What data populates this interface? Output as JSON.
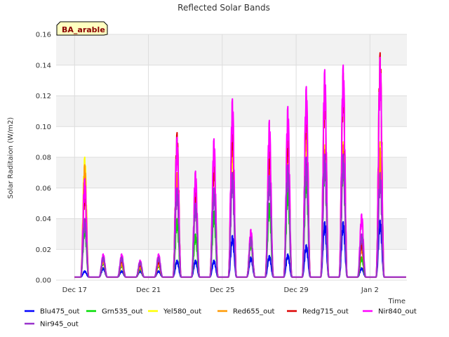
{
  "chart_data": {
    "type": "line",
    "title": "Reflected Solar Bands",
    "ylabel": "Solar Raditaion (W/m2)",
    "xlabel": "Time",
    "site_label": "BA_arable",
    "xlim": [
      "2024-12-16",
      "2025-01-04"
    ],
    "ylim": [
      0,
      0.16
    ],
    "yticks": [
      0.0,
      0.02,
      0.04,
      0.06,
      0.08,
      0.1,
      0.12,
      0.14,
      0.16
    ],
    "ytick_labels": [
      "0.00",
      "0.02",
      "0.04",
      "0.06",
      "0.08",
      "0.10",
      "0.12",
      "0.14",
      "0.16"
    ],
    "xticks": [
      "2024-12-17",
      "2024-12-21",
      "2024-12-25",
      "2024-12-29",
      "2025-01-02"
    ],
    "xtick_labels": [
      "Dec 17",
      "Dec 21",
      "Dec 25",
      "Dec 29",
      "Jan 2"
    ],
    "grid": true,
    "legend_position": "bottom",
    "days": [
      "2024-12-17",
      "2024-12-18",
      "2024-12-19",
      "2024-12-20",
      "2024-12-21",
      "2024-12-22",
      "2024-12-23",
      "2024-12-24",
      "2024-12-25",
      "2024-12-26",
      "2024-12-27",
      "2024-12-28",
      "2024-12-29",
      "2024-12-30",
      "2024-12-31",
      "2025-01-01",
      "2025-01-02",
      "2025-01-03"
    ],
    "series": [
      {
        "name": "Blu475_out",
        "color": "#0000ff",
        "daily_peak": [
          0.006,
          0.008,
          0.006,
          0.006,
          0.006,
          0.013,
          0.013,
          0.013,
          0.029,
          0.015,
          0.016,
          0.017,
          0.023,
          0.038,
          0.038,
          0.008,
          0.039,
          0.002
        ]
      },
      {
        "name": "Grn535_out",
        "color": "#00dd00",
        "daily_peak": [
          0.035,
          0.012,
          0.01,
          0.008,
          0.01,
          0.04,
          0.03,
          0.045,
          0.07,
          0.025,
          0.05,
          0.06,
          0.07,
          0.08,
          0.08,
          0.015,
          0.07,
          0.002
        ]
      },
      {
        "name": "Yel580_out",
        "color": "#ffff00",
        "daily_peak": [
          0.08,
          0.014,
          0.012,
          0.01,
          0.012,
          0.06,
          0.05,
          0.085,
          0.09,
          0.03,
          0.08,
          0.09,
          0.1,
          0.088,
          0.09,
          0.025,
          0.09,
          0.002
        ]
      },
      {
        "name": "Red655_out",
        "color": "#ff9900",
        "daily_peak": [
          0.075,
          0.013,
          0.011,
          0.009,
          0.011,
          0.07,
          0.055,
          0.08,
          0.1,
          0.028,
          0.085,
          0.095,
          0.11,
          0.085,
          0.088,
          0.022,
          0.086,
          0.002
        ]
      },
      {
        "name": "Redg715_out",
        "color": "#dd0000",
        "daily_peak": [
          0.06,
          0.015,
          0.014,
          0.011,
          0.013,
          0.096,
          0.06,
          0.08,
          0.105,
          0.03,
          0.09,
          0.1,
          0.12,
          0.13,
          0.135,
          0.025,
          0.148,
          0.002
        ]
      },
      {
        "name": "Nir840_out",
        "color": "#ff00ff",
        "daily_peak": [
          0.066,
          0.017,
          0.017,
          0.013,
          0.017,
          0.093,
          0.071,
          0.092,
          0.118,
          0.033,
          0.104,
          0.113,
          0.126,
          0.137,
          0.14,
          0.043,
          0.145,
          0.002
        ]
      },
      {
        "name": "Nir945_out",
        "color": "#9933cc",
        "daily_peak": [
          0.04,
          0.015,
          0.015,
          0.012,
          0.015,
          0.06,
          0.05,
          0.06,
          0.07,
          0.028,
          0.068,
          0.075,
          0.08,
          0.082,
          0.082,
          0.03,
          0.07,
          0.002
        ]
      }
    ]
  }
}
